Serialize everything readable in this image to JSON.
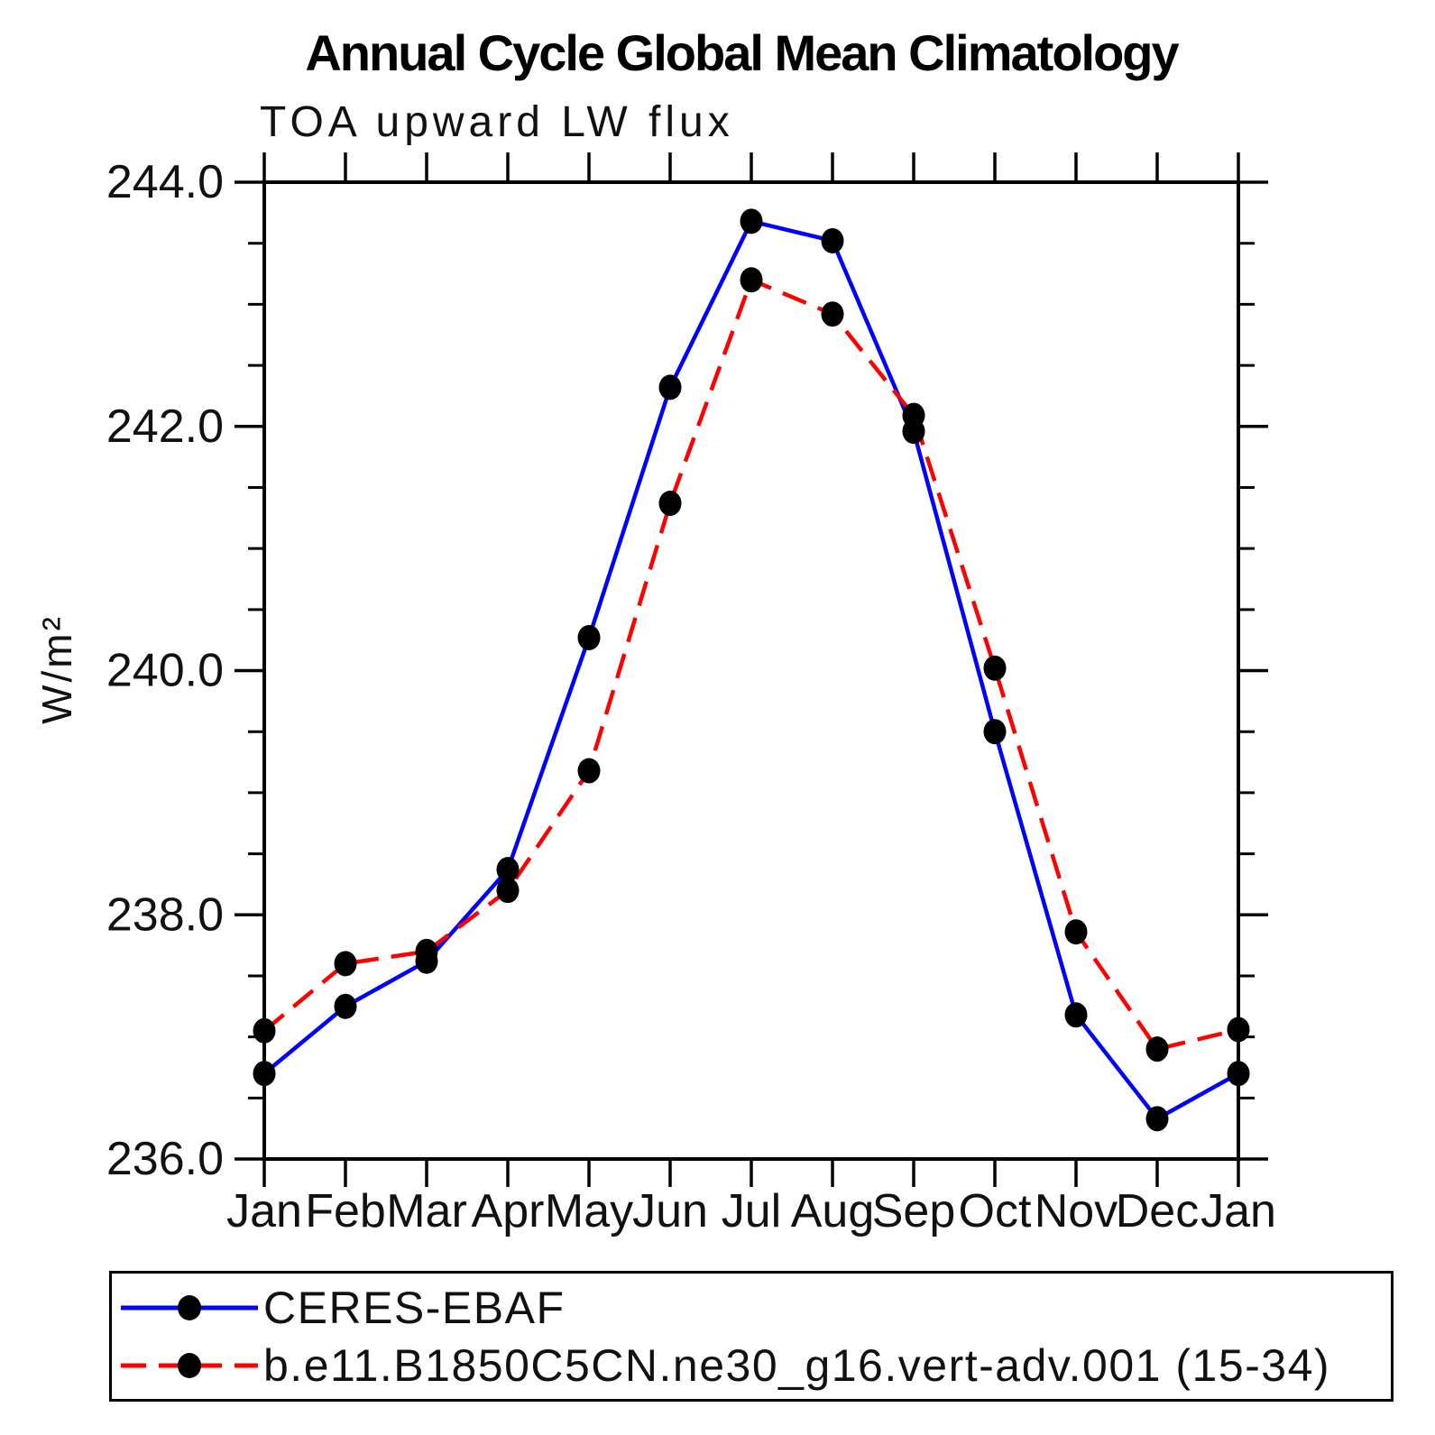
{
  "title": "Annual Cycle Global Mean Climatology",
  "subtitle": "TOA upward LW flux",
  "y_axis_label": "W/m²",
  "colors": {
    "ceres_line": "#0000ff",
    "model_line": "#ff0000",
    "marker": "#000000",
    "axis": "#000000",
    "background": "#ffffff"
  },
  "chart_data": {
    "type": "line",
    "title": "Annual Cycle Global Mean Climatology",
    "subtitle": "TOA upward LW flux",
    "xlabel": "",
    "ylabel": "W/m²",
    "categories": [
      "Jan",
      "Feb",
      "Mar",
      "Apr",
      "May",
      "Jun",
      "Jul",
      "Aug",
      "Sep",
      "Oct",
      "Nov",
      "Dec",
      "Jan"
    ],
    "series": [
      {
        "name": "CERES-EBAF",
        "color": "#0000ff",
        "line_style": "solid",
        "marker": "filled-circle",
        "marker_color": "#000000",
        "values": [
          236.7,
          237.25,
          237.62,
          238.37,
          240.27,
          242.32,
          243.68,
          243.52,
          241.96,
          239.5,
          237.18,
          236.33,
          236.7
        ]
      },
      {
        "name": "b.e11.B1850C5CN.ne30_g16.vert-adv.001 (15-34)",
        "color": "#ff0000",
        "line_style": "dashed",
        "marker": "filled-circle",
        "marker_color": "#000000",
        "values": [
          237.05,
          237.6,
          237.7,
          238.2,
          239.18,
          241.37,
          243.2,
          242.92,
          242.09,
          240.02,
          237.86,
          236.9,
          237.06
        ]
      }
    ],
    "ylim": [
      236.0,
      244.0
    ],
    "y_major_tick_values": [
      244.0,
      242.0,
      240.0,
      238.0,
      236.0
    ],
    "y_major_tick_labels": [
      "244.0",
      "242.0",
      "240.0",
      "238.0",
      "236.0"
    ],
    "y_minor_tick_step": 0.5,
    "grid": false,
    "frame": true,
    "legend_position": "bottom-left-box"
  }
}
